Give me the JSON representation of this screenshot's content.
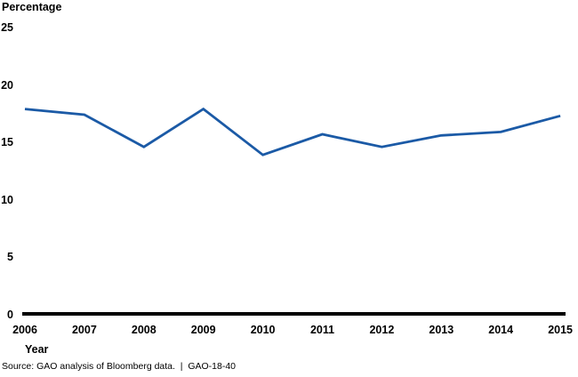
{
  "chart_data": {
    "type": "line",
    "title": "",
    "ylabel": "Percentage",
    "xlabel": "Year",
    "categories": [
      "2006",
      "2007",
      "2008",
      "2009",
      "2010",
      "2011",
      "2012",
      "2013",
      "2014",
      "2015"
    ],
    "values": [
      17.9,
      17.4,
      14.6,
      17.9,
      13.9,
      15.7,
      14.6,
      15.6,
      15.9,
      17.3
    ],
    "ylim": [
      0,
      25
    ],
    "yticks": [
      0,
      5,
      10,
      15,
      20,
      25
    ],
    "grid": false,
    "legend": false,
    "line_color": "#1b5aa6",
    "axis_color": "#000000",
    "source_note": "Source: GAO analysis of Bloomberg data.  |  GAO-18-40"
  }
}
